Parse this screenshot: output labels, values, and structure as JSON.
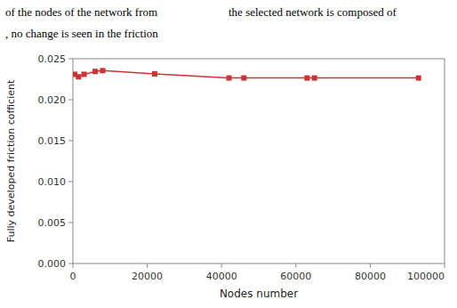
{
  "chart_data": {
    "type": "line",
    "annotations": [
      "of  the  nodes  of  the  network  from",
      "the selected network is composed of",
      ", no  change  is  seen  in  the  friction"
    ],
    "xlabel": "Nodes number",
    "ylabel": "Fully developed friction cofficient",
    "x": [
      500,
      1500,
      3000,
      6000,
      8000,
      22000,
      42000,
      46000,
      63000,
      65000,
      93000
    ],
    "values": [
      0.0231,
      0.0228,
      0.0231,
      0.02345,
      0.02355,
      0.02315,
      0.02265,
      0.02265,
      0.02265,
      0.02265,
      0.02265
    ],
    "color": "#cc3333",
    "marker": "square",
    "grid": false,
    "xlim": [
      0,
      100000
    ],
    "ylim": [
      0,
      0.025
    ],
    "xticks": [
      0,
      20000,
      40000,
      60000,
      80000,
      100000
    ],
    "yticks": [
      {
        "value": 0,
        "label": "0.000"
      },
      0.005,
      {
        "value": 0.01,
        "label": "0.010"
      },
      0.015,
      {
        "value": 0.02,
        "label": "0.020"
      },
      0.025
    ]
  }
}
